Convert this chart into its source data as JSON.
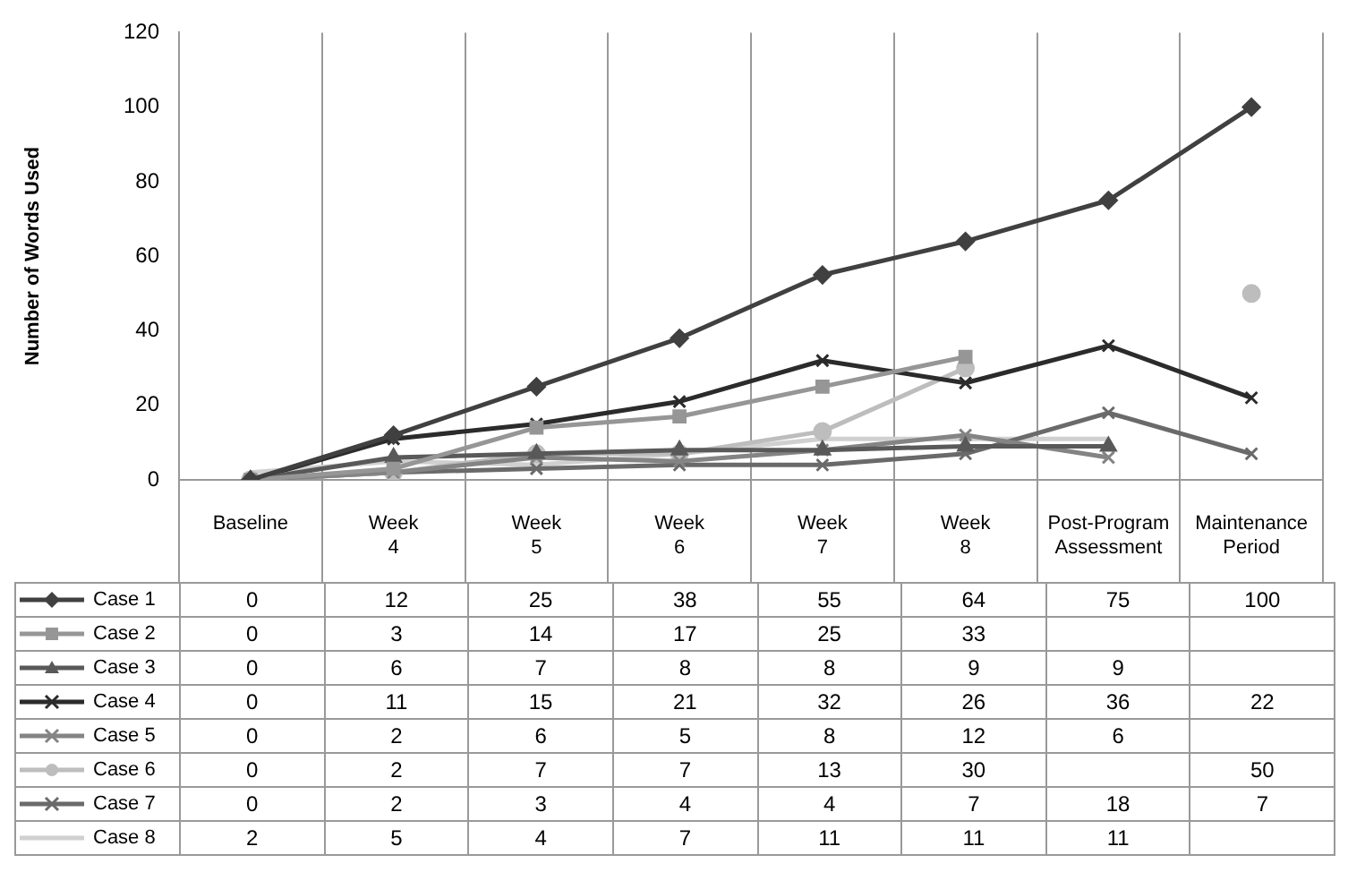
{
  "chart_data": {
    "type": "line",
    "ylabel": "Number of Words Used",
    "categories": [
      "Baseline",
      "Week 4",
      "Week 5",
      "Week 6",
      "Week 7",
      "Week 8",
      "Post-Program Assessment",
      "Maintenance Period"
    ],
    "series": [
      {
        "name": "Case 1",
        "color": "#404040",
        "marker": "diamond",
        "values": [
          0,
          12,
          25,
          38,
          55,
          64,
          75,
          100
        ]
      },
      {
        "name": "Case 2",
        "color": "#969696",
        "marker": "square",
        "values": [
          0,
          3,
          14,
          17,
          25,
          33,
          null,
          null
        ]
      },
      {
        "name": "Case 3",
        "color": "#595959",
        "marker": "triangle",
        "values": [
          0,
          6,
          7,
          8,
          8,
          9,
          9,
          null
        ]
      },
      {
        "name": "Case 4",
        "color": "#2b2b2b",
        "marker": "cross",
        "values": [
          0,
          11,
          15,
          21,
          32,
          26,
          36,
          22
        ]
      },
      {
        "name": "Case 5",
        "color": "#848484",
        "marker": "cross",
        "values": [
          0,
          2,
          6,
          5,
          8,
          12,
          6,
          null
        ]
      },
      {
        "name": "Case 6",
        "color": "#bdbdbd",
        "marker": "circle",
        "values": [
          0,
          2,
          7,
          7,
          13,
          30,
          null,
          50
        ]
      },
      {
        "name": "Case 7",
        "color": "#6a6a6a",
        "marker": "cross",
        "values": [
          0,
          2,
          3,
          4,
          4,
          7,
          18,
          7
        ]
      },
      {
        "name": "Case 8",
        "color": "#d0d0d0",
        "marker": "none",
        "values": [
          2,
          5,
          4,
          7,
          11,
          11,
          11,
          null
        ]
      }
    ],
    "ylim": [
      0,
      120
    ],
    "yticks": [
      0,
      20,
      40,
      60,
      80,
      100,
      120
    ],
    "grid": "x",
    "legend": "bottom left",
    "data_labels": true
  }
}
